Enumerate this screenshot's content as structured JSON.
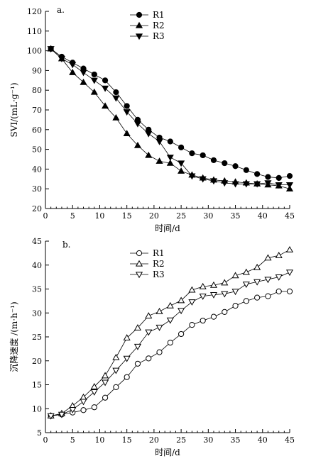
{
  "chart_data": [
    {
      "type": "line",
      "panel_label": "a.",
      "xlabel": "时间/d",
      "ylabel": "SVI/(mL·g⁻¹)",
      "xlim": [
        0,
        45
      ],
      "ylim": [
        20,
        120
      ],
      "xticks": [
        0,
        5,
        10,
        15,
        20,
        25,
        30,
        35,
        40,
        45
      ],
      "yticks": [
        20,
        30,
        40,
        50,
        60,
        70,
        80,
        90,
        100,
        110,
        120
      ],
      "grid": false,
      "legend_position": "top-center",
      "series": [
        {
          "name": "R1",
          "marker": "filled-circle",
          "x": [
            1,
            3,
            5,
            7,
            9,
            11,
            13,
            15,
            17,
            19,
            21,
            23,
            25,
            27,
            29,
            31,
            33,
            35,
            37,
            39,
            41,
            43,
            45
          ],
          "y": [
            101,
            97,
            94,
            91,
            88,
            85,
            79,
            72,
            65,
            60,
            56,
            54,
            51,
            48,
            47,
            44.5,
            43,
            41.5,
            39.5,
            37.5,
            36,
            35.5,
            36.5
          ]
        },
        {
          "name": "R2",
          "marker": "filled-triangle-up",
          "x": [
            1,
            3,
            5,
            7,
            9,
            11,
            13,
            15,
            17,
            19,
            21,
            23,
            25,
            27,
            29,
            31,
            33,
            35,
            37,
            39,
            41,
            43,
            45
          ],
          "y": [
            101,
            96,
            89,
            84,
            79,
            72,
            66,
            58,
            52,
            47,
            44,
            43,
            39,
            37,
            35.5,
            34.5,
            34,
            33.5,
            33,
            32.5,
            32,
            31.5,
            30
          ]
        },
        {
          "name": "R3",
          "marker": "filled-triangle-down",
          "x": [
            1,
            3,
            5,
            7,
            9,
            11,
            13,
            15,
            17,
            19,
            21,
            23,
            25,
            27,
            29,
            31,
            33,
            35,
            37,
            39,
            41,
            43,
            45
          ],
          "y": [
            101,
            96,
            93,
            89,
            85,
            81,
            76,
            69,
            63,
            58,
            54,
            46,
            43,
            36.5,
            35,
            34,
            33,
            32.5,
            32.5,
            32.5,
            33,
            32,
            32
          ]
        }
      ]
    },
    {
      "type": "line",
      "panel_label": "b.",
      "xlabel": "时间/d",
      "ylabel": "沉降速度 /(m·h⁻¹)",
      "xlim": [
        0,
        45
      ],
      "ylim": [
        5,
        45
      ],
      "xticks": [
        0,
        5,
        10,
        15,
        20,
        25,
        30,
        35,
        40,
        45
      ],
      "yticks": [
        5,
        10,
        15,
        20,
        25,
        30,
        35,
        40,
        45
      ],
      "grid": false,
      "legend_position": "top-center",
      "series": [
        {
          "name": "R1",
          "marker": "open-circle",
          "x": [
            1,
            3,
            5,
            7,
            9,
            11,
            13,
            15,
            17,
            19,
            21,
            23,
            25,
            27,
            29,
            31,
            33,
            35,
            37,
            39,
            41,
            43,
            45
          ],
          "y": [
            8.5,
            8.8,
            9.2,
            9.7,
            10.3,
            12.3,
            14.5,
            16.6,
            19.4,
            20.5,
            21.8,
            23.8,
            25.6,
            27.5,
            28.4,
            29.2,
            30.2,
            31.5,
            32.5,
            33.2,
            33.5,
            34.5,
            34.5
          ]
        },
        {
          "name": "R2",
          "marker": "open-triangle-up",
          "x": [
            1,
            3,
            5,
            7,
            9,
            11,
            13,
            15,
            17,
            19,
            21,
            23,
            25,
            27,
            29,
            31,
            33,
            35,
            37,
            39,
            41,
            43,
            45
          ],
          "y": [
            8.5,
            9.0,
            10.6,
            12.4,
            14.6,
            16.9,
            20.7,
            24.8,
            26.9,
            29.4,
            30.3,
            31.5,
            32.6,
            34.8,
            35.5,
            35.8,
            36.3,
            37.8,
            38.5,
            39.5,
            41.5,
            42.0,
            43.2
          ]
        },
        {
          "name": "R3",
          "marker": "open-triangle-down",
          "x": [
            1,
            3,
            5,
            7,
            9,
            11,
            13,
            15,
            17,
            19,
            21,
            23,
            25,
            27,
            29,
            31,
            33,
            35,
            37,
            39,
            41,
            43,
            45
          ],
          "y": [
            8.5,
            8.8,
            9.8,
            11.5,
            13.5,
            15.5,
            18.0,
            20.5,
            23.0,
            26.0,
            27.0,
            28.5,
            30.5,
            32.3,
            33.5,
            33.8,
            34.0,
            34.5,
            36.0,
            36.5,
            37.0,
            37.5,
            38.5
          ]
        }
      ]
    }
  ]
}
